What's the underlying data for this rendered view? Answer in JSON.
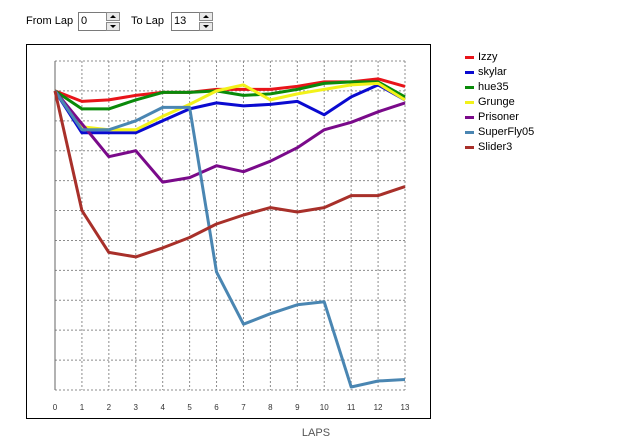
{
  "controls": {
    "from_lap_label": "From Lap",
    "from_lap_value": "0",
    "to_lap_label": "To Lap",
    "to_lap_value": "13"
  },
  "chart_data": {
    "type": "line",
    "xlabel": "LAPS",
    "ylabel": "",
    "x": [
      0,
      1,
      2,
      3,
      4,
      5,
      6,
      7,
      8,
      9,
      10,
      11,
      12,
      13
    ],
    "x_tick_labels": [
      "0",
      "1",
      "2",
      "3",
      "4",
      "5",
      "6",
      "7",
      "8",
      "9",
      "10",
      "11",
      "12",
      "13"
    ],
    "ylim": [
      0,
      110
    ],
    "y_ticks": [
      0,
      10,
      20,
      30,
      40,
      50,
      60,
      70,
      80,
      90,
      100,
      110
    ],
    "y_tick_labels": [],
    "grid": "dotted",
    "legend_position": "right",
    "series": [
      {
        "name": "Izzy",
        "color": "#e8141a",
        "values": [
          100,
          96.5,
          97,
          98.5,
          99.5,
          99.5,
          100.5,
          100.5,
          100.5,
          101.5,
          103,
          103,
          104,
          101.5
        ]
      },
      {
        "name": "skylar",
        "color": "#0a0ad0",
        "values": [
          100,
          86,
          86,
          86,
          90,
          94,
          96,
          95,
          95.5,
          96.5,
          92,
          98,
          102,
          97
        ]
      },
      {
        "name": "hue35",
        "color": "#0a8a0a",
        "values": [
          100,
          94,
          94,
          97,
          99.5,
          99.5,
          100,
          98.5,
          99,
          100.5,
          102.5,
          103,
          103,
          98
        ]
      },
      {
        "name": "Grunge",
        "color": "#f2f21a",
        "values": [
          100,
          88,
          87,
          87,
          91.5,
          95.5,
          100,
          102,
          97,
          99,
          100.5,
          102,
          102.5,
          97
        ]
      },
      {
        "name": "Prisoner",
        "color": "#7a0a8a",
        "values": [
          100,
          89,
          78,
          80,
          69.5,
          71,
          75,
          73,
          76.5,
          81,
          87,
          89.5,
          93,
          96
        ]
      },
      {
        "name": "SuperFly05",
        "color": "#4a86b2",
        "values": [
          100,
          87,
          87,
          90,
          94.5,
          94.5,
          39.5,
          22,
          25.5,
          28.5,
          29.5,
          1,
          3,
          3.5
        ]
      },
      {
        "name": "Slider3",
        "color": "#a8302a",
        "values": [
          100,
          60,
          46,
          44.5,
          47.5,
          51,
          55.5,
          58.5,
          61,
          59.5,
          61,
          65,
          65,
          68
        ]
      }
    ]
  }
}
